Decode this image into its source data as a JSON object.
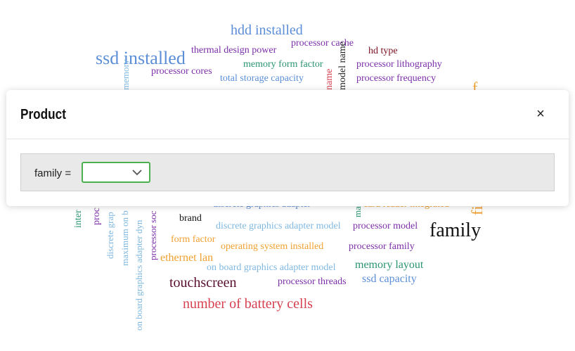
{
  "word_cloud": {
    "words": [
      {
        "text": "hdd installed",
        "color": "#5b8ed6",
        "size": 20
      },
      {
        "text": "ssd installed",
        "color": "#5b8ed6",
        "size": 26
      },
      {
        "text": "thermal design power",
        "color": "#7b2ea8",
        "size": 14
      },
      {
        "text": "processor cache",
        "color": "#7b2ea8",
        "size": 14
      },
      {
        "text": "hd type",
        "color": "#7a1020",
        "size": 14
      },
      {
        "text": "processor cores",
        "color": "#7b2ea8",
        "size": 14
      },
      {
        "text": "memory form factor",
        "color": "#2a9470",
        "size": 14
      },
      {
        "text": "processor lithography",
        "color": "#7b2ea8",
        "size": 14
      },
      {
        "text": "total storage capacity",
        "color": "#5b8ed6",
        "size": 14
      },
      {
        "text": "processor frequency",
        "color": "#7b2ea8",
        "size": 14
      },
      {
        "text": "model name",
        "color": "#222222",
        "size": 14
      },
      {
        "text": "name",
        "color": "#d64050",
        "size": 14
      },
      {
        "text": "memory",
        "color": "#7fb8e0",
        "size": 13
      },
      {
        "text": "f",
        "color": "#f0a030",
        "size": 22
      },
      {
        "text": "discrete graphics adapter",
        "color": "#5b8ed6",
        "size": 14
      },
      {
        "text": "card reader integrated",
        "color": "#f0a030",
        "size": 14
      },
      {
        "text": "brand",
        "color": "#111111",
        "size": 14
      },
      {
        "text": "discrete graphics adapter model",
        "color": "#7fb8e0",
        "size": 14
      },
      {
        "text": "processor model",
        "color": "#7b2ea8",
        "size": 14
      },
      {
        "text": "family",
        "color": "#111111",
        "size": 28
      },
      {
        "text": "form factor",
        "color": "#f0a030",
        "size": 14
      },
      {
        "text": "operating system installed",
        "color": "#f0a030",
        "size": 14
      },
      {
        "text": "processor family",
        "color": "#7b2ea8",
        "size": 14
      },
      {
        "text": "ethernet lan",
        "color": "#f0a030",
        "size": 16
      },
      {
        "text": "on board graphics adapter model",
        "color": "#7fb8e0",
        "size": 14
      },
      {
        "text": "memory layout",
        "color": "#2a9470",
        "size": 16
      },
      {
        "text": "touchscreen",
        "color": "#5a1030",
        "size": 20
      },
      {
        "text": "processor threads",
        "color": "#7b2ea8",
        "size": 14
      },
      {
        "text": "ssd capacity",
        "color": "#5b8ed6",
        "size": 16
      },
      {
        "text": "number of battery cells",
        "color": "#d64050",
        "size": 20
      },
      {
        "text": "inter",
        "color": "#2a9470",
        "size": 14
      },
      {
        "text": "proc",
        "color": "#7b2ea8",
        "size": 14
      },
      {
        "text": "discrete grap",
        "color": "#7fb8e0",
        "size": 13
      },
      {
        "text": "maximum on b",
        "color": "#7fb8e0",
        "size": 13
      },
      {
        "text": "on board graphics adapter dyn",
        "color": "#7fb8e0",
        "size": 13
      },
      {
        "text": "processor soc",
        "color": "#7b2ea8",
        "size": 13
      },
      {
        "text": "ma",
        "color": "#2a9470",
        "size": 13
      },
      {
        "text": "fi",
        "color": "#f0a030",
        "size": 22
      }
    ]
  },
  "modal": {
    "title": "Product",
    "close_icon": "×",
    "filter_label": "family =",
    "family_value": "",
    "accent_color": "#4caf50"
  }
}
